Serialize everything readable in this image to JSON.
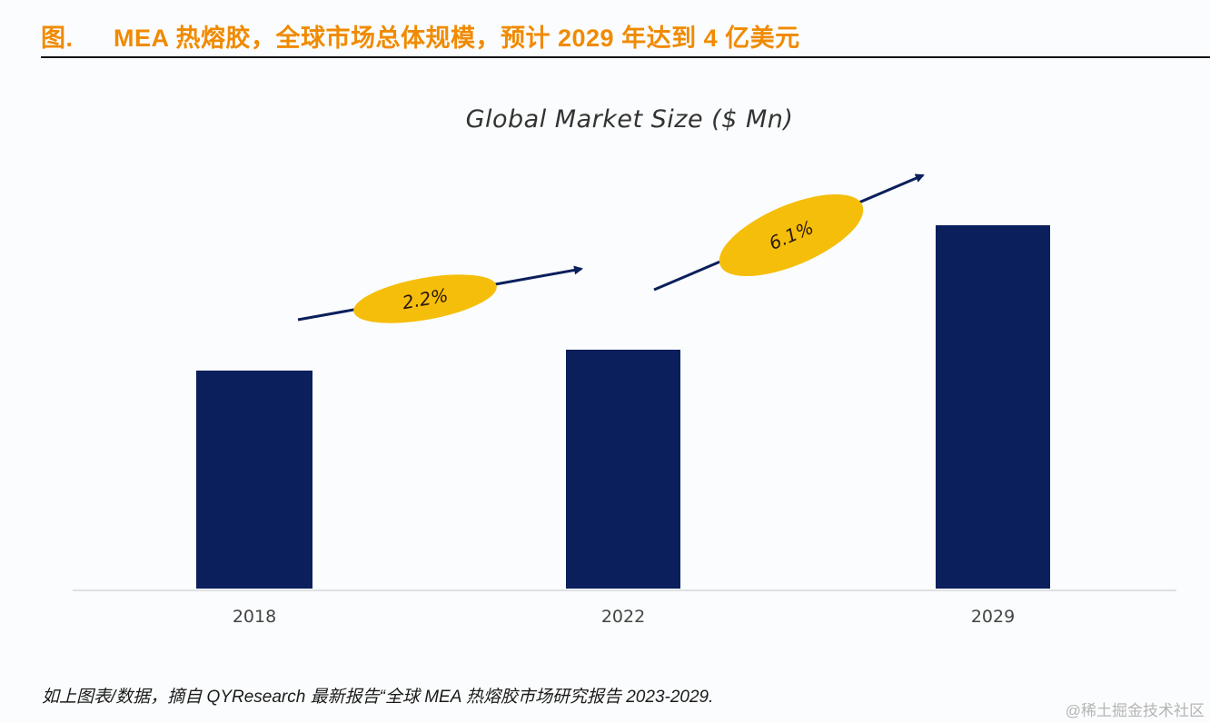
{
  "figure": {
    "prefix": "图.",
    "title": "MEA 热熔胶，全球市场总体规模，预计 2029 年达到 4 亿美元",
    "caption": "如上图表/数据，摘自 QYResearch 最新报告“全球 MEA 热熔胶市场研究报告 2023-2029.",
    "watermark": "@稀土掘金技术社区"
  },
  "colors": {
    "title": "#f08a00",
    "bar": "#0a1f5c",
    "badge": "#f5be0b",
    "arrow": "#0a1f5c"
  },
  "chart_data": {
    "type": "bar",
    "title": "Global Market Size ($ Mn)",
    "xlabel": "",
    "ylabel": "",
    "categories": [
      "2018",
      "2022",
      "2029"
    ],
    "values": [
      240,
      263,
      400
    ],
    "ylim": [
      0,
      420
    ],
    "grid": false,
    "y_axis_visible": false,
    "annotations": [
      {
        "label": "2.2%",
        "from": "2018",
        "to": "2022",
        "meaning": "CAGR"
      },
      {
        "label": "6.1%",
        "from": "2022",
        "to": "2029",
        "meaning": "CAGR"
      }
    ]
  }
}
